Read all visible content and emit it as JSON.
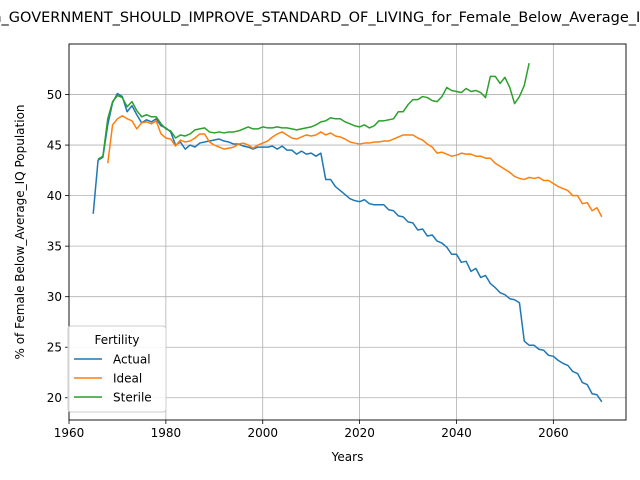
{
  "chart_data": {
    "type": "line",
    "title": "in_GOVERNMENT_SHOULD_IMPROVE_STANDARD_OF_LIVING_for_Female_Below_Average_IQ",
    "xlabel": "Years",
    "ylabel": "% of Female Below_Average_IQ Population",
    "xlim": [
      1960,
      2075
    ],
    "ylim": [
      17.8,
      55
    ],
    "xticks": [
      1960,
      1980,
      2000,
      2020,
      2040,
      2060
    ],
    "yticks": [
      20,
      25,
      30,
      35,
      40,
      45,
      50
    ],
    "grid": true,
    "legend": {
      "title": "Fertility",
      "location": "lower left"
    },
    "series": [
      {
        "name": "Actual",
        "color": "#1f77b4",
        "x": [
          1965,
          1966,
          1967,
          1968,
          1969,
          1970,
          1971,
          1972,
          1973,
          1974,
          1975,
          1976,
          1977,
          1978,
          1979,
          1980,
          1981,
          1982,
          1983,
          1984,
          1985,
          1986,
          1987,
          1988,
          1989,
          1990,
          1991,
          1992,
          1993,
          1994,
          1995,
          1996,
          1997,
          1998,
          1999,
          2000,
          2001,
          2002,
          2003,
          2004,
          2005,
          2006,
          2007,
          2008,
          2009,
          2010,
          2011,
          2012,
          2013,
          2014,
          2015,
          2016,
          2017,
          2018,
          2019,
          2020,
          2021,
          2022,
          2023,
          2024,
          2025,
          2026,
          2027,
          2028,
          2029,
          2030,
          2031,
          2032,
          2033,
          2034,
          2035,
          2036,
          2037,
          2038,
          2039,
          2040,
          2041,
          2042,
          2043,
          2044,
          2045,
          2046,
          2047,
          2048,
          2049,
          2050,
          2051,
          2052,
          2053,
          2054,
          2055,
          2056,
          2057,
          2058,
          2059,
          2060,
          2061,
          2062,
          2063,
          2064,
          2065,
          2066,
          2067,
          2068,
          2069,
          2070
        ],
        "y": [
          38.2,
          43.5,
          43.8,
          47.0,
          49.2,
          50.1,
          49.8,
          48.3,
          48.9,
          48.0,
          47.2,
          47.5,
          47.3,
          47.6,
          46.9,
          46.7,
          46.3,
          45.0,
          45.3,
          44.6,
          45.0,
          44.8,
          45.2,
          45.3,
          45.4,
          45.5,
          45.6,
          45.4,
          45.3,
          45.1,
          45.1,
          44.9,
          44.8,
          44.6,
          44.8,
          44.8,
          44.8,
          44.9,
          44.6,
          44.9,
          44.5,
          44.5,
          44.1,
          44.4,
          44.1,
          44.2,
          43.9,
          44.2,
          41.6,
          41.6,
          40.9,
          40.5,
          40.1,
          39.7,
          39.5,
          39.4,
          39.6,
          39.2,
          39.1,
          39.1,
          39.1,
          38.6,
          38.5,
          38.0,
          37.9,
          37.4,
          37.3,
          36.6,
          36.7,
          36.0,
          36.1,
          35.5,
          35.3,
          34.9,
          34.2,
          34.2,
          33.4,
          33.5,
          32.5,
          32.8,
          31.9,
          32.1,
          31.3,
          30.9,
          30.4,
          30.2,
          29.8,
          29.7,
          29.4,
          25.6,
          25.2,
          25.2,
          24.8,
          24.7,
          24.2,
          24.1,
          23.7,
          23.4,
          23.2,
          22.6,
          22.4,
          21.5,
          21.3,
          20.4,
          20.3,
          19.6
        ]
      },
      {
        "name": "Ideal",
        "color": "#ff7f0e",
        "x": [
          1968,
          1969,
          1970,
          1971,
          1972,
          1973,
          1974,
          1975,
          1976,
          1977,
          1978,
          1979,
          1980,
          1981,
          1982,
          1983,
          1984,
          1985,
          1986,
          1987,
          1988,
          1989,
          1990,
          1991,
          1992,
          1993,
          1994,
          1995,
          1996,
          1997,
          1998,
          1999,
          2000,
          2001,
          2002,
          2003,
          2004,
          2005,
          2006,
          2007,
          2008,
          2009,
          2010,
          2011,
          2012,
          2013,
          2014,
          2015,
          2016,
          2017,
          2018,
          2019,
          2020,
          2021,
          2022,
          2023,
          2024,
          2025,
          2026,
          2027,
          2028,
          2029,
          2030,
          2031,
          2032,
          2033,
          2034,
          2035,
          2036,
          2037,
          2038,
          2039,
          2040,
          2041,
          2042,
          2043,
          2044,
          2045,
          2046,
          2047,
          2048,
          2049,
          2050,
          2051,
          2052,
          2053,
          2054,
          2055,
          2056,
          2057,
          2058,
          2059,
          2060,
          2061,
          2062,
          2063,
          2064,
          2065,
          2066,
          2067,
          2068,
          2069,
          2070
        ],
        "y": [
          43.2,
          47.0,
          47.6,
          47.9,
          47.6,
          47.4,
          46.6,
          47.2,
          47.3,
          47.1,
          47.4,
          46.1,
          45.7,
          45.6,
          44.9,
          45.5,
          45.3,
          45.4,
          45.7,
          46.1,
          46.1,
          45.3,
          45.0,
          44.8,
          44.6,
          44.7,
          44.8,
          45.1,
          45.2,
          45.0,
          44.7,
          45.0,
          45.2,
          45.4,
          45.8,
          46.1,
          46.3,
          46.0,
          45.7,
          45.6,
          45.8,
          46.0,
          45.9,
          46.0,
          46.3,
          46.0,
          46.2,
          45.9,
          45.8,
          45.6,
          45.3,
          45.2,
          45.1,
          45.2,
          45.2,
          45.3,
          45.3,
          45.4,
          45.4,
          45.6,
          45.8,
          46.0,
          46.0,
          46.0,
          45.7,
          45.5,
          45.1,
          44.8,
          44.2,
          44.3,
          44.1,
          43.9,
          44.0,
          44.2,
          44.1,
          44.1,
          43.9,
          43.9,
          43.7,
          43.7,
          43.2,
          42.9,
          42.6,
          42.3,
          41.9,
          41.7,
          41.6,
          41.8,
          41.7,
          41.8,
          41.5,
          41.5,
          41.2,
          40.9,
          40.7,
          40.5,
          40.0,
          40.0,
          39.2,
          39.3,
          38.5,
          38.8,
          37.9
        ]
      },
      {
        "name": "Sterile",
        "color": "#2ca02c",
        "x": [
          1966,
          1967,
          1968,
          1969,
          1970,
          1971,
          1972,
          1973,
          1974,
          1975,
          1976,
          1977,
          1978,
          1979,
          1980,
          1981,
          1982,
          1983,
          1984,
          1985,
          1986,
          1987,
          1988,
          1989,
          1990,
          1991,
          1992,
          1993,
          1994,
          1995,
          1996,
          1997,
          1998,
          1999,
          2000,
          2001,
          2002,
          2003,
          2004,
          2005,
          2006,
          2007,
          2008,
          2009,
          2010,
          2011,
          2012,
          2013,
          2014,
          2015,
          2016,
          2017,
          2018,
          2019,
          2020,
          2021,
          2022,
          2023,
          2024,
          2025,
          2026,
          2027,
          2028,
          2029,
          2030,
          2031,
          2032,
          2033,
          2034,
          2035,
          2036,
          2037,
          2038,
          2039,
          2040,
          2041,
          2042,
          2043,
          2044,
          2045,
          2046,
          2047,
          2048,
          2049,
          2050,
          2051,
          2052,
          2053,
          2054,
          2055
        ],
        "y": [
          43.6,
          43.9,
          47.6,
          49.3,
          49.9,
          49.7,
          48.8,
          49.3,
          48.4,
          47.8,
          48.0,
          47.8,
          47.8,
          47.1,
          46.6,
          46.4,
          45.7,
          46.0,
          45.9,
          46.1,
          46.5,
          46.6,
          46.7,
          46.3,
          46.2,
          46.3,
          46.2,
          46.3,
          46.3,
          46.4,
          46.6,
          46.8,
          46.6,
          46.6,
          46.8,
          46.7,
          46.7,
          46.8,
          46.7,
          46.7,
          46.6,
          46.5,
          46.6,
          46.7,
          46.8,
          47.0,
          47.3,
          47.4,
          47.7,
          47.6,
          47.6,
          47.3,
          47.1,
          46.9,
          46.8,
          47.0,
          46.7,
          46.9,
          47.4,
          47.4,
          47.5,
          47.6,
          48.3,
          48.3,
          49.0,
          49.5,
          49.5,
          49.8,
          49.7,
          49.4,
          49.3,
          49.8,
          50.7,
          50.4,
          50.3,
          50.2,
          50.6,
          50.3,
          50.4,
          50.2,
          49.7,
          51.8,
          51.8,
          51.1,
          51.7,
          50.7,
          49.1,
          49.8,
          50.9,
          53.1
        ]
      }
    ]
  }
}
